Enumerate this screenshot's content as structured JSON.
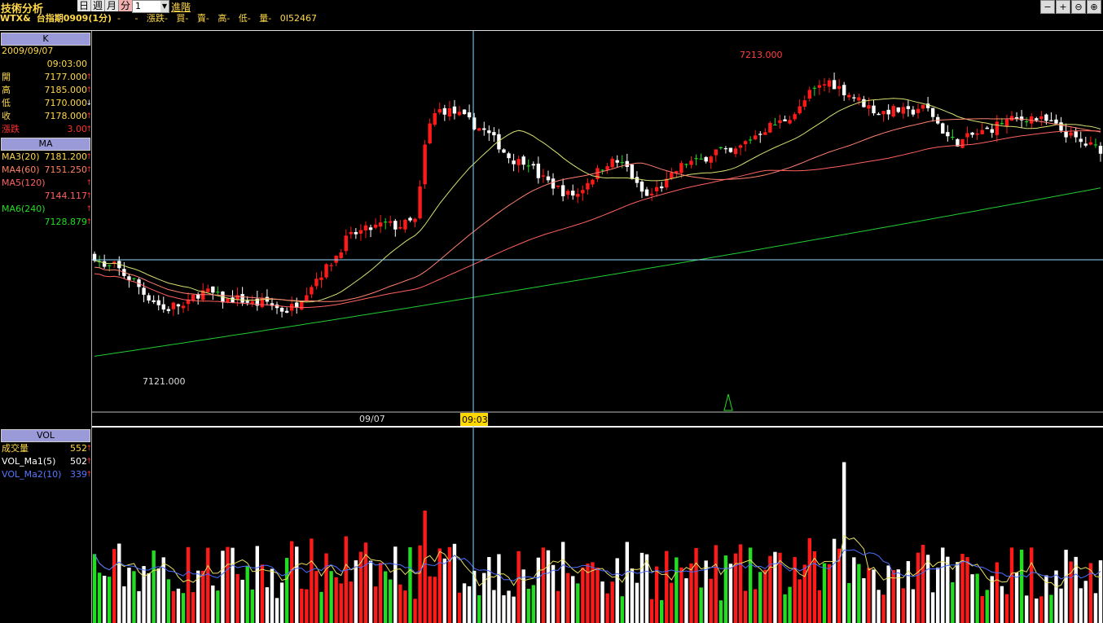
{
  "header": {
    "title": "技術分析",
    "periods": [
      "日",
      "週",
      "月",
      "分"
    ],
    "selected_period": "分",
    "interval_value": "1",
    "advanced_label": "進階",
    "symbol": "WTX&",
    "contract": "台指期0909(1分)",
    "quote_fields": "-     -   漲跌-   買-   賣-   高-   低-   量-   0I52467"
  },
  "window_buttons": [
    "−",
    "+",
    "⊖",
    "⊕"
  ],
  "k_panel": {
    "heading": "K",
    "date": "2009/09/07",
    "time": "09:03:00",
    "rows": [
      {
        "label": "開",
        "value": "7177.000",
        "dir": "up"
      },
      {
        "label": "高",
        "value": "7185.000",
        "dir": "up"
      },
      {
        "label": "低",
        "value": "7170.000",
        "dir": "down"
      },
      {
        "label": "收",
        "value": "7178.000",
        "dir": "up"
      },
      {
        "label": "漲跌",
        "value": "3.00",
        "dir": "up"
      }
    ]
  },
  "ma_panel": {
    "heading": "MA",
    "rows": [
      {
        "label": "MA3(20)",
        "value": "7181.200"
      },
      {
        "label": "MA4(60)",
        "value": "7151.250"
      },
      {
        "label": "MA5(120)",
        "value": "7144.117"
      },
      {
        "label": "MA6(240)",
        "value": "7128.879"
      }
    ]
  },
  "vol_panel": {
    "heading": "VOL",
    "rows": [
      {
        "label": "成交量",
        "value": "552"
      },
      {
        "label": "VOL_Ma1(5)",
        "value": "502"
      },
      {
        "label": "VOL_Ma2(10)",
        "value": "339"
      }
    ]
  },
  "chart_annotations": {
    "high_label": "7213.000",
    "low_label": "7121.000",
    "date_tick": "09/07",
    "cursor_time": "09:03"
  },
  "colors": {
    "up": "#ff1a1a",
    "down": "#ffffff",
    "flat": "#22dd22",
    "ma20": "#d7e070",
    "ma60": "#ff8070",
    "ma120": "#ff6060",
    "ma240": "#22cc33",
    "accent": "#ffd84a",
    "crosshair": "#8fd8ff"
  },
  "chart_data": {
    "type": "candlestick",
    "price_range": [
      7110,
      7222
    ],
    "high": 7213.0,
    "low": 7121.0,
    "close_path": [
      7155,
      7151,
      7152,
      7149,
      7147,
      7143,
      7141,
      7138,
      7140,
      7139,
      7143,
      7144,
      7143,
      7141,
      7142,
      7141,
      7140,
      7141,
      7139,
      7138,
      7140,
      7144,
      7148,
      7151,
      7155,
      7160,
      7162,
      7163,
      7164,
      7165,
      7164,
      7165,
      7166,
      7193,
      7200,
      7200,
      7199,
      7197,
      7195,
      7193,
      7190,
      7186,
      7184,
      7185,
      7180,
      7178,
      7176,
      7174,
      7174,
      7178,
      7181,
      7184,
      7184,
      7182,
      7176,
      7173,
      7176,
      7178,
      7182,
      7184,
      7184,
      7186,
      7188,
      7186,
      7188,
      7191,
      7193,
      7195,
      7196,
      7198,
      7200,
      7205,
      7207,
      7209,
      7207,
      7205,
      7203,
      7201,
      7199,
      7200,
      7200,
      7199,
      7201,
      7200,
      7195,
      7191,
      7190,
      7192,
      7193,
      7194,
      7196,
      7197,
      7197,
      7198,
      7197,
      7196,
      7194,
      7192,
      7190,
      7189,
      7188
    ],
    "volume_range": [
      0,
      1200
    ]
  }
}
